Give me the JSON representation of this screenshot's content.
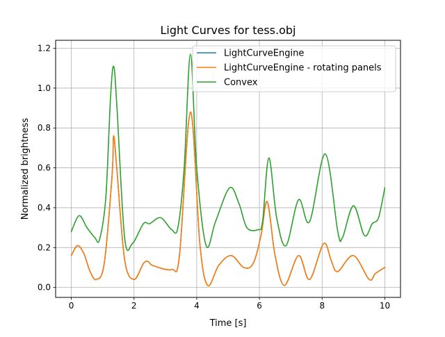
{
  "chart_data": {
    "type": "line",
    "title": "Light Curves for tess.obj",
    "xlabel": "Time [s]",
    "ylabel": "Normalized brightness",
    "xlim": [
      -0.5,
      10.5
    ],
    "ylim": [
      -0.05,
      1.24
    ],
    "xticks": [
      0,
      2,
      4,
      6,
      8,
      10
    ],
    "yticks": [
      0.0,
      0.2,
      0.4,
      0.6,
      0.8,
      1.0,
      1.2
    ],
    "xtick_labels": [
      "0",
      "2",
      "4",
      "6",
      "8",
      "10"
    ],
    "ytick_labels": [
      "0.0",
      "0.2",
      "0.4",
      "0.6",
      "0.8",
      "1.0",
      "1.2"
    ],
    "grid": true,
    "legend_position": "top-right",
    "series": [
      {
        "name": "LightCurveEngine",
        "color": "#1f77b4",
        "x": [
          0,
          0.2,
          0.4,
          0.6,
          0.8,
          1.05,
          1.3,
          1.35,
          1.45,
          1.7,
          2.0,
          2.3,
          2.45,
          2.6,
          3.2,
          3.45,
          3.8,
          4.1,
          4.35,
          4.7,
          5.1,
          5.5,
          5.8,
          6.05,
          6.25,
          6.5,
          6.8,
          7.25,
          7.6,
          8.05,
          8.3,
          8.5,
          9.0,
          9.5,
          9.7,
          10.0
        ],
        "y": [
          0.16,
          0.21,
          0.17,
          0.08,
          0.04,
          0.12,
          0.56,
          0.76,
          0.6,
          0.14,
          0.04,
          0.12,
          0.13,
          0.11,
          0.09,
          0.16,
          0.88,
          0.22,
          0.01,
          0.11,
          0.16,
          0.1,
          0.12,
          0.26,
          0.43,
          0.16,
          0.01,
          0.16,
          0.04,
          0.22,
          0.13,
          0.08,
          0.16,
          0.04,
          0.07,
          0.1
        ]
      },
      {
        "name": "LightCurveEngine - rotating panels",
        "color": "#ff7f0e",
        "x": [
          0,
          0.2,
          0.4,
          0.6,
          0.8,
          1.05,
          1.3,
          1.35,
          1.45,
          1.7,
          2.0,
          2.3,
          2.45,
          2.6,
          3.2,
          3.45,
          3.8,
          4.1,
          4.35,
          4.7,
          5.1,
          5.5,
          5.8,
          6.05,
          6.25,
          6.5,
          6.8,
          7.25,
          7.6,
          8.05,
          8.3,
          8.5,
          9.0,
          9.5,
          9.7,
          10.0
        ],
        "y": [
          0.16,
          0.21,
          0.17,
          0.08,
          0.04,
          0.12,
          0.56,
          0.76,
          0.6,
          0.14,
          0.04,
          0.12,
          0.13,
          0.11,
          0.09,
          0.16,
          0.88,
          0.22,
          0.01,
          0.11,
          0.16,
          0.1,
          0.12,
          0.26,
          0.43,
          0.16,
          0.01,
          0.16,
          0.04,
          0.22,
          0.13,
          0.08,
          0.16,
          0.04,
          0.07,
          0.1
        ]
      },
      {
        "name": "Convex",
        "color": "#2ca02c",
        "x": [
          0,
          0.25,
          0.5,
          0.75,
          0.9,
          1.1,
          1.25,
          1.35,
          1.45,
          1.7,
          1.95,
          2.3,
          2.5,
          2.85,
          3.2,
          3.4,
          3.6,
          3.8,
          4.0,
          4.3,
          4.6,
          5.05,
          5.35,
          5.6,
          5.95,
          6.1,
          6.3,
          6.55,
          6.85,
          7.25,
          7.6,
          8.1,
          8.5,
          8.65,
          9.0,
          9.35,
          9.6,
          9.8,
          10.0
        ],
        "y": [
          0.28,
          0.36,
          0.3,
          0.25,
          0.24,
          0.45,
          0.95,
          1.11,
          0.92,
          0.25,
          0.22,
          0.32,
          0.32,
          0.35,
          0.29,
          0.3,
          0.6,
          1.17,
          0.6,
          0.21,
          0.33,
          0.5,
          0.42,
          0.3,
          0.29,
          0.33,
          0.65,
          0.35,
          0.21,
          0.44,
          0.33,
          0.67,
          0.28,
          0.25,
          0.41,
          0.26,
          0.32,
          0.35,
          0.5
        ]
      }
    ]
  }
}
